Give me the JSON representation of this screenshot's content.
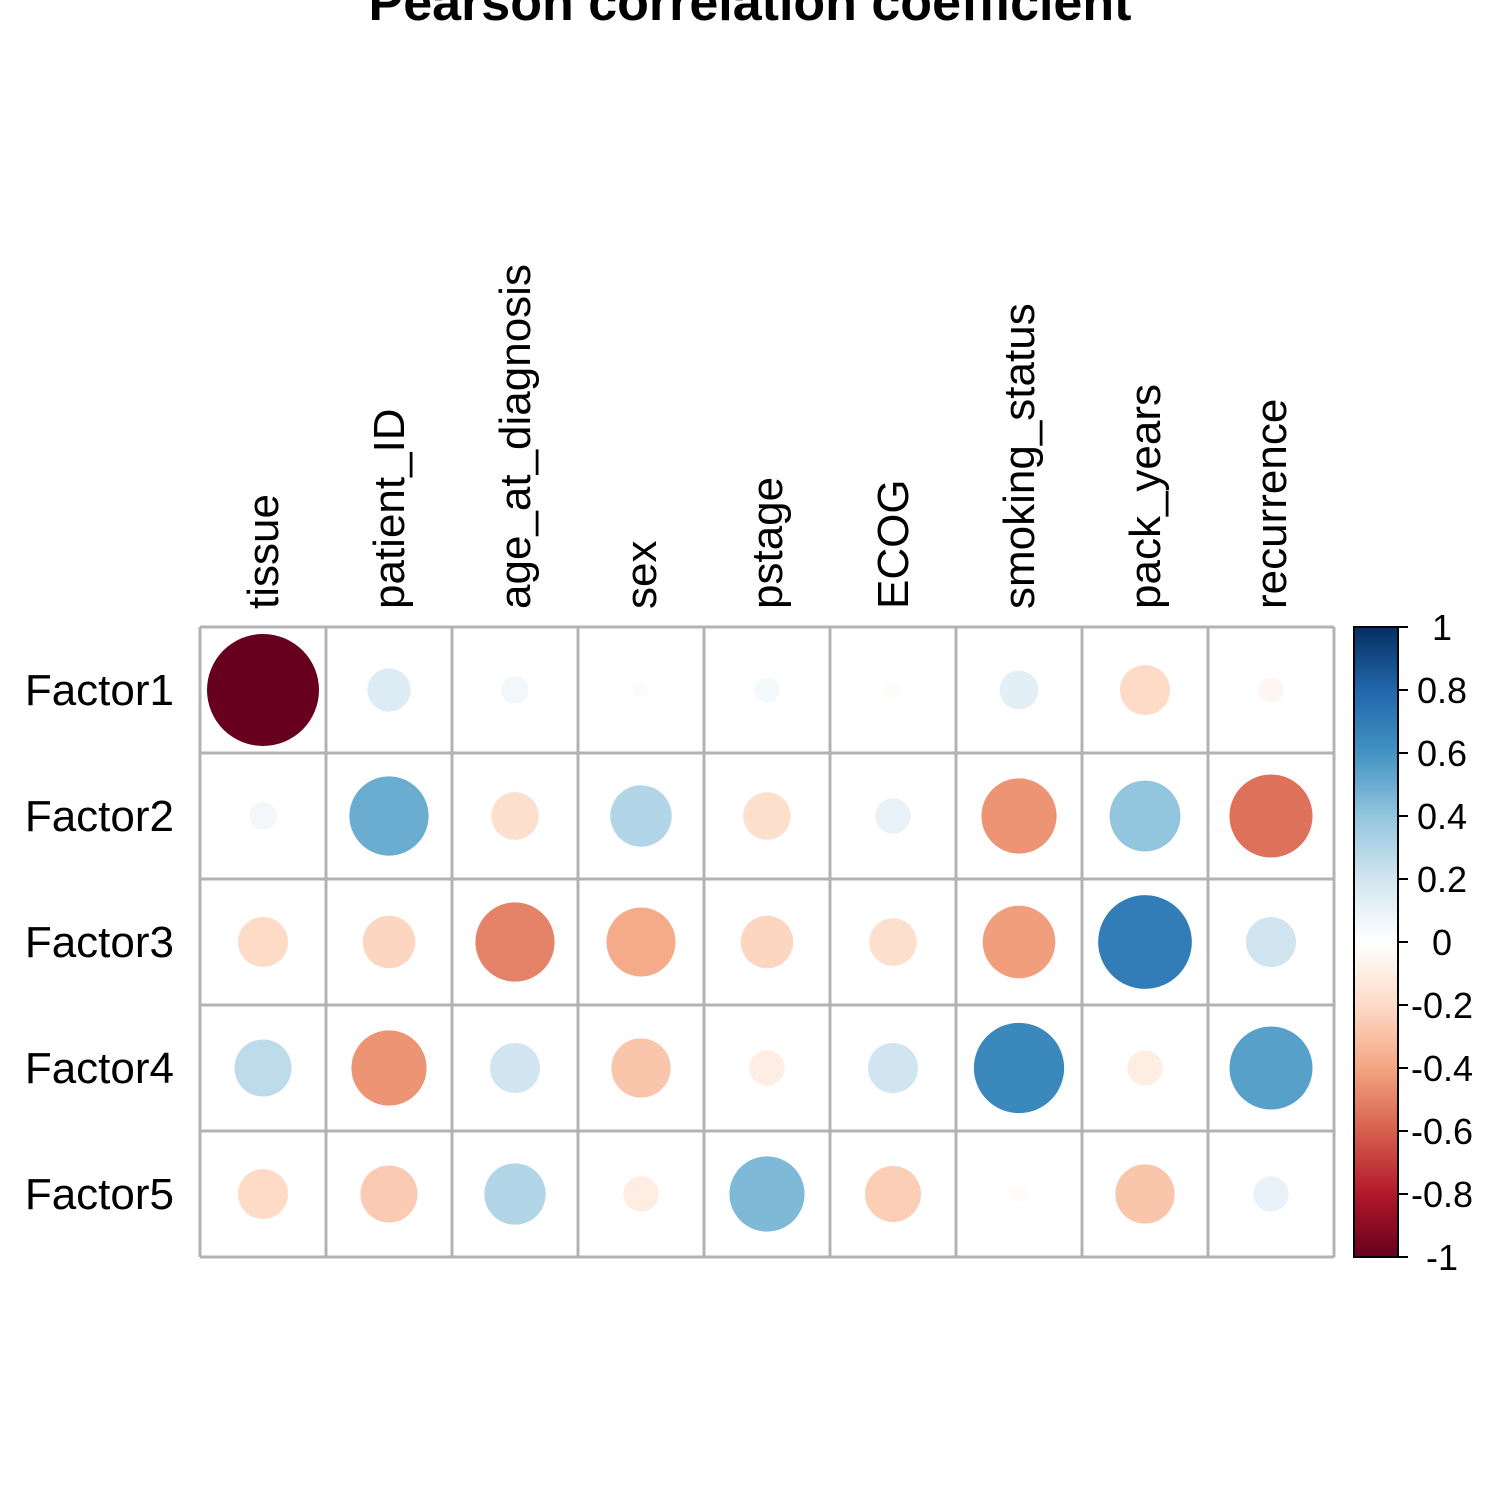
{
  "chart_data": {
    "type": "heatmap",
    "title": "Pearson correlation coefficient",
    "columns": [
      "tissue",
      "patient_ID",
      "age_at_diagnosis",
      "sex",
      "pstage",
      "ECOG",
      "smoking_status",
      "pack_years",
      "recurrence"
    ],
    "rows": [
      "Factor1",
      "Factor2",
      "Factor3",
      "Factor4",
      "Factor5"
    ],
    "values": [
      [
        -1.0,
        0.15,
        0.06,
        -0.02,
        0.05,
        -0.02,
        0.12,
        -0.2,
        -0.05
      ],
      [
        0.06,
        0.5,
        -0.18,
        0.3,
        -0.18,
        0.1,
        -0.45,
        0.4,
        -0.55
      ],
      [
        -0.2,
        -0.22,
        -0.5,
        -0.38,
        -0.22,
        -0.18,
        -0.42,
        0.7,
        0.2
      ],
      [
        0.26,
        -0.45,
        0.2,
        -0.28,
        -0.1,
        0.2,
        0.65,
        -0.1,
        0.55
      ],
      [
        -0.2,
        -0.26,
        0.3,
        -0.1,
        0.45,
        -0.25,
        -0.02,
        -0.28,
        0.1
      ]
    ],
    "colorbar": {
      "min": -1,
      "max": 1,
      "ticks": [
        "1",
        "0.8",
        "0.6",
        "0.4",
        "0.2",
        "0",
        "-0.2",
        "-0.4",
        "-0.6",
        "-0.8",
        "-1"
      ],
      "colors": [
        "#67001F",
        "#B2182B",
        "#D6604D",
        "#F4A582",
        "#FDDBC7",
        "#FFFFFF",
        "#D1E5F0",
        "#92C5DE",
        "#4393C3",
        "#2166AC",
        "#053061"
      ]
    },
    "grid": true,
    "legend_position": "right",
    "grid_color": "#b3b3b3"
  }
}
